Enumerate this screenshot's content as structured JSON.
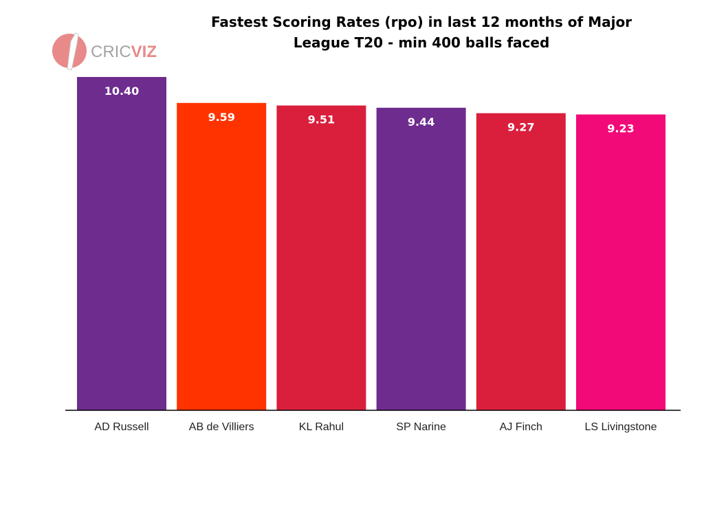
{
  "logo": {
    "text_light": "CRIC",
    "text_bold": "VIZ",
    "color_light": "#a3a3a3",
    "color_bold": "#e88a8a",
    "ball_color": "#e88a8a"
  },
  "chart_data": {
    "type": "bar",
    "title": "Fastest Scoring Rates (rpo) in last 12 months of Major League T20  - min 400 balls faced",
    "title_lines": [
      "Fastest Scoring Rates (rpo) in last 12 months of Major",
      "League T20  - min 400 balls faced"
    ],
    "xlabel": "",
    "ylabel": "",
    "ylim": [
      0,
      10.4
    ],
    "grid": false,
    "categories": [
      "AD Russell",
      "AB de Villiers",
      "KL Rahul",
      "SP Narine",
      "AJ Finch",
      "LS Livingstone"
    ],
    "values": [
      10.4,
      9.59,
      9.51,
      9.44,
      9.27,
      9.23
    ],
    "value_labels": [
      "10.40",
      "9.59",
      "9.51",
      "9.44",
      "9.27",
      "9.23"
    ],
    "colors": [
      "#6e2c8e",
      "#ff3300",
      "#d91f3c",
      "#6e2c8e",
      "#d91f3c",
      "#f20a78"
    ]
  }
}
